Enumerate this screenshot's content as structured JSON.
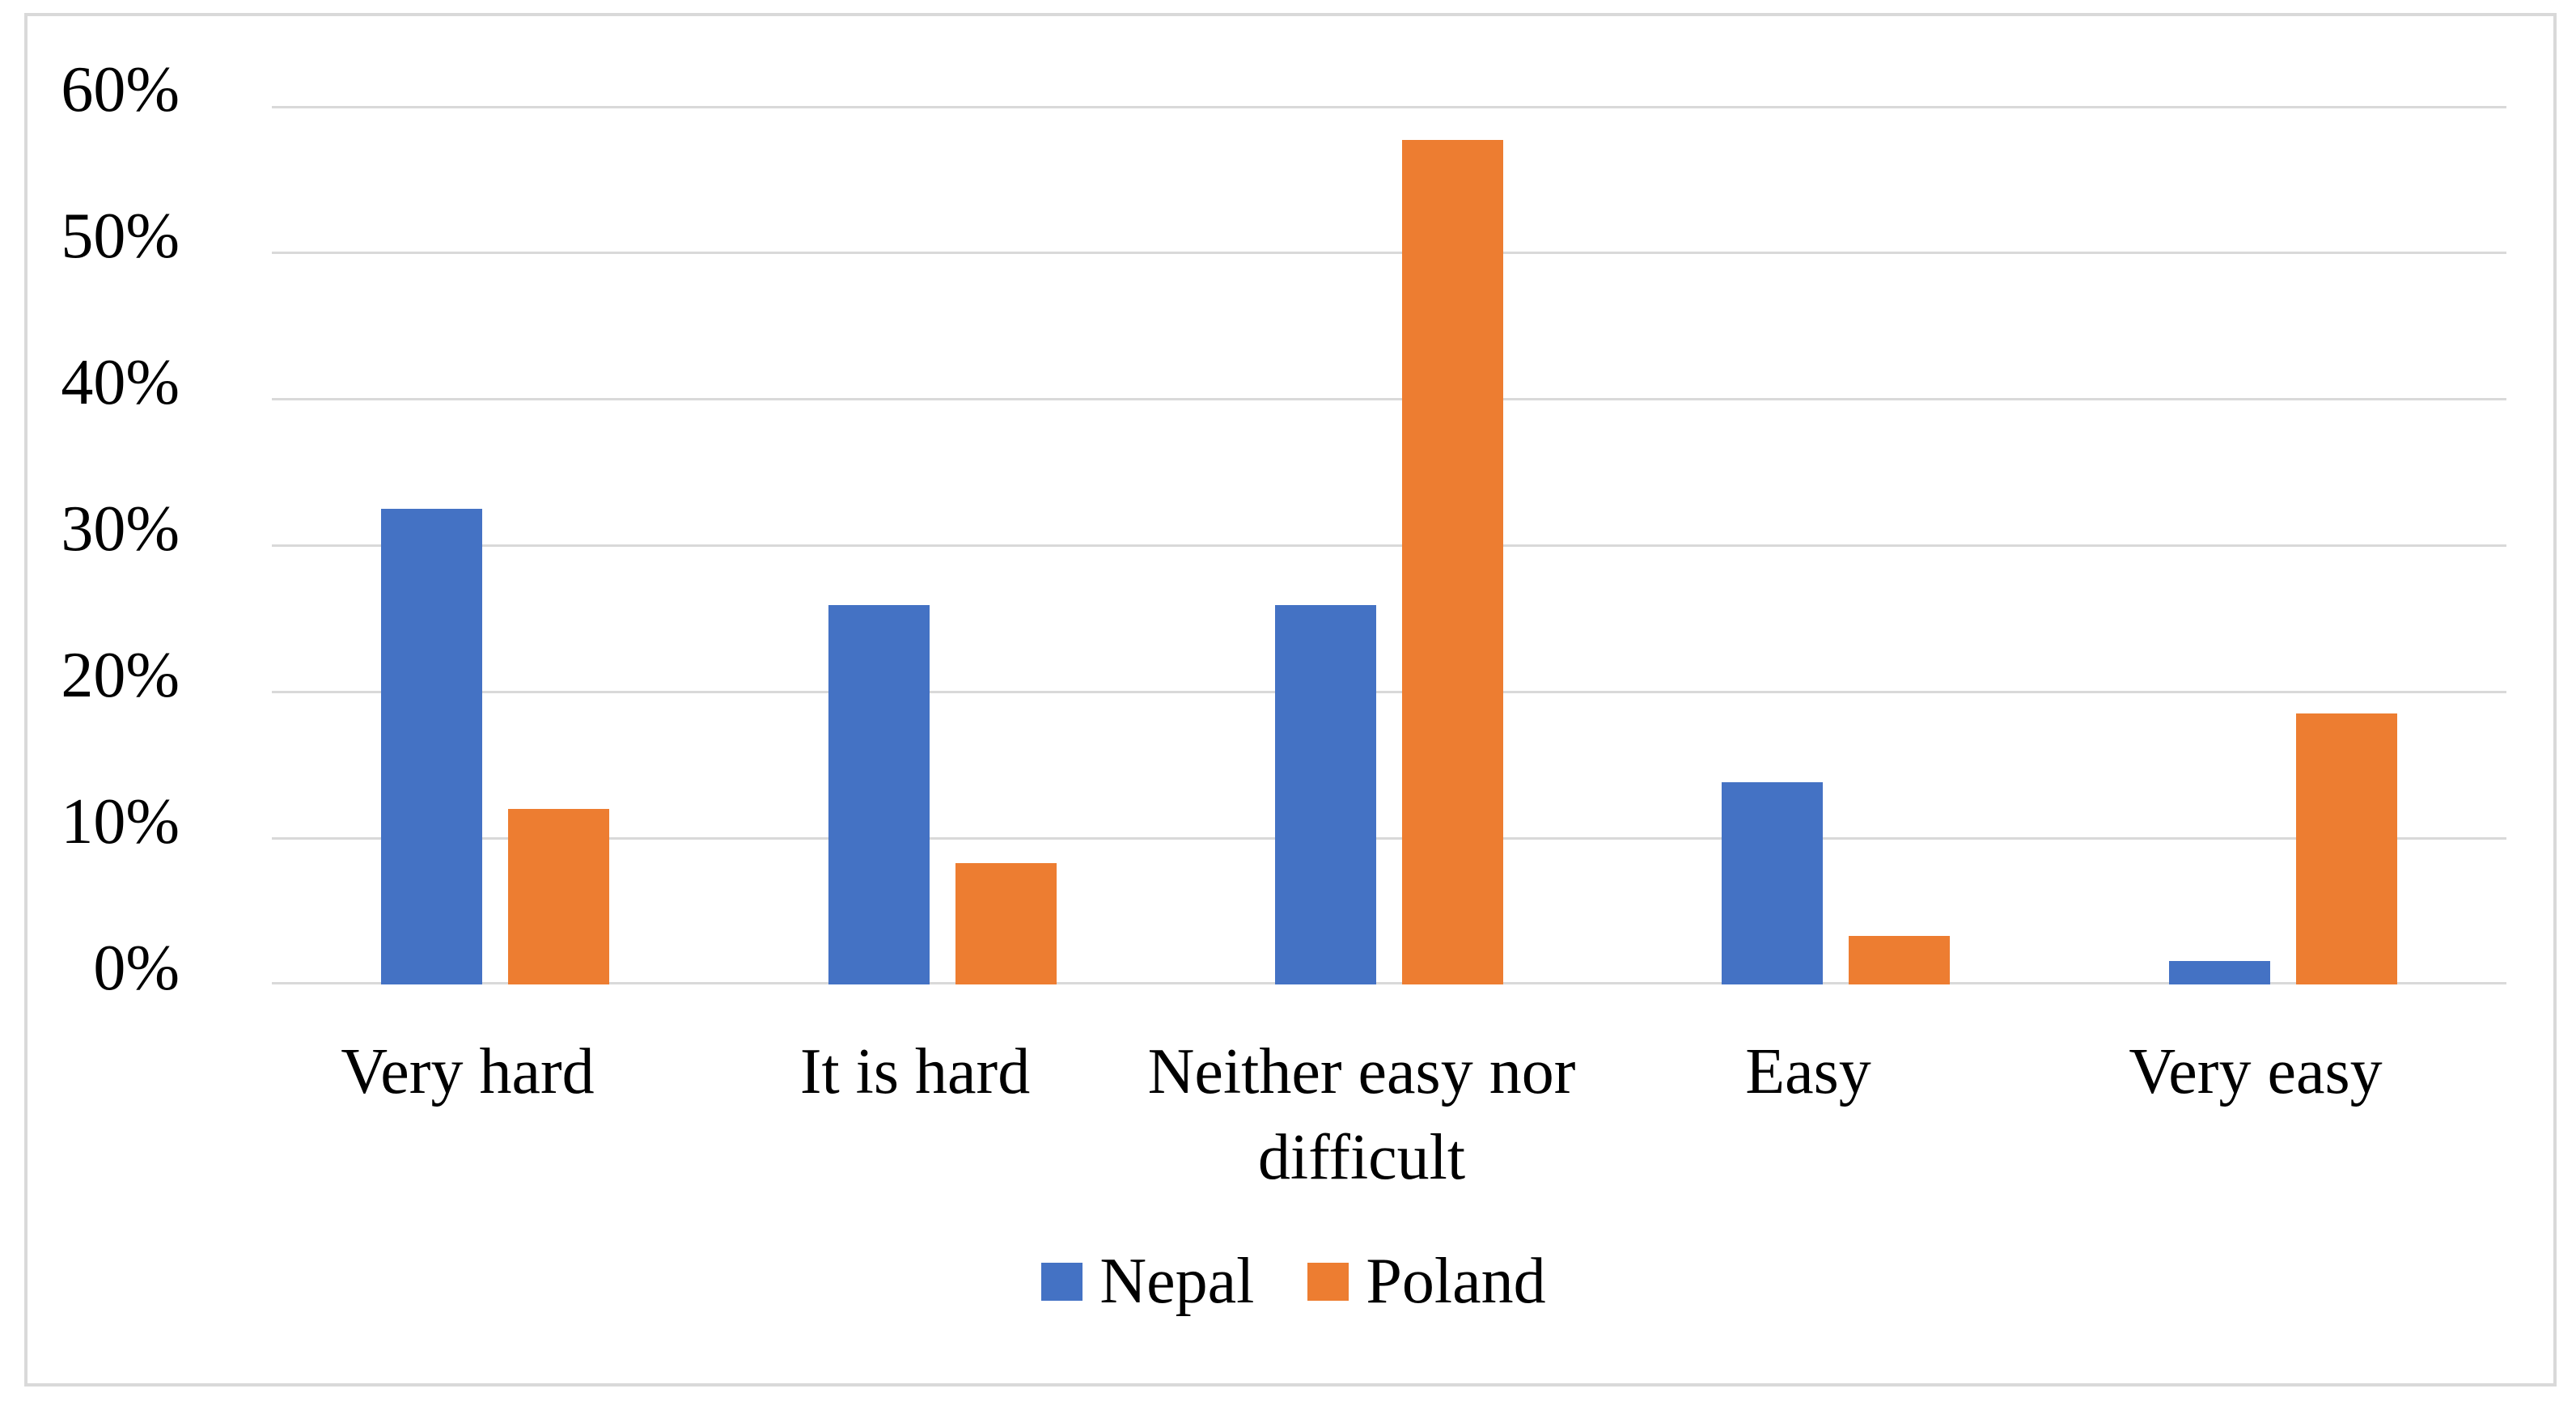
{
  "chart_data": {
    "type": "bar",
    "title": "",
    "xlabel": "",
    "ylabel": "",
    "categories": [
      "Very hard",
      "It is hard",
      "Neither easy nor difficult",
      "Easy",
      "Very easy"
    ],
    "series": [
      {
        "name": "Nepal",
        "color": "#4472C4",
        "values": [
          32.5,
          25.9,
          25.9,
          13.8,
          1.6
        ]
      },
      {
        "name": "Poland",
        "color": "#ED7D31",
        "values": [
          12.0,
          8.3,
          57.7,
          3.3,
          18.5
        ]
      }
    ],
    "ylim": [
      0,
      60
    ],
    "ytick_values": [
      60,
      50,
      40,
      30,
      20,
      10,
      0
    ],
    "ytick_labels": [
      "60%",
      "50%",
      "40%",
      "30%",
      "20%",
      "10%",
      "0%"
    ],
    "grid": true,
    "legend_position": "bottom",
    "colors": {
      "gridline": "#D9D9D9",
      "frame_border": "#D9D9D9",
      "background": "#FFFFFF",
      "text": "#000000"
    }
  }
}
